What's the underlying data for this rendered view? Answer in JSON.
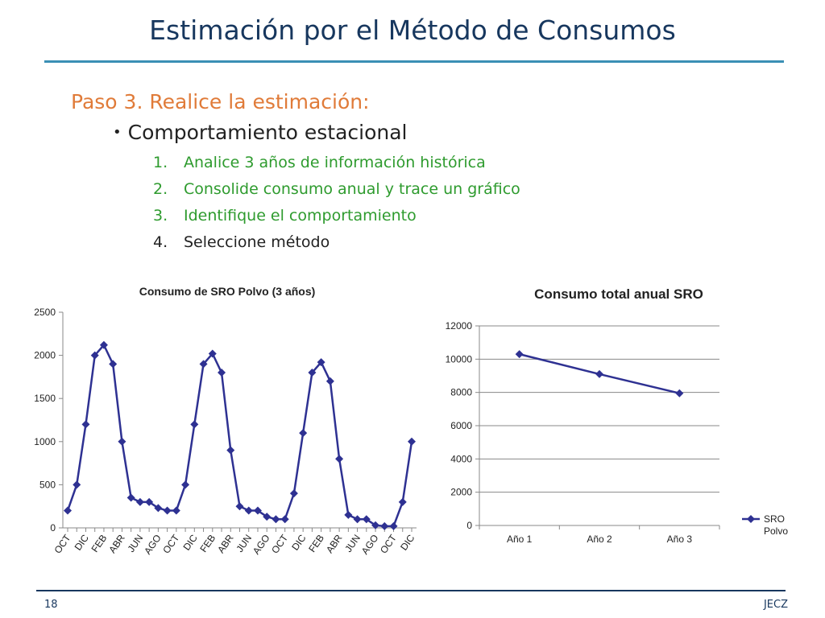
{
  "header": {
    "title": "Estimación por el Método de Consumos"
  },
  "content": {
    "step": "Paso 3. Realice la estimación:",
    "bullet": "Comportamiento estacional",
    "items": [
      {
        "num": "1.",
        "text": "Analice 3 años de información histórica"
      },
      {
        "num": "2.",
        "text": "Consolide consumo anual y trace un gráfico"
      },
      {
        "num": "3.",
        "text": "Identifique el comportamiento"
      },
      {
        "num": "4.",
        "text": "Seleccione método"
      }
    ]
  },
  "colors": {
    "title": "#17375e",
    "accent_rule": "#3b8fb5",
    "step": "#e07b39",
    "green": "#2e9b2e",
    "series": "#2e3192"
  },
  "chart_data": [
    {
      "type": "line",
      "title": "Consumo de SRO Polvo (3 años)",
      "xlabel": "",
      "ylabel": "",
      "ylim": [
        0,
        2500
      ],
      "yticks": [
        0,
        500,
        1000,
        1500,
        2000,
        2500
      ],
      "grid": false,
      "x_tick_labels": [
        "OCT",
        "DIC",
        "FEB",
        "ABR",
        "JUN",
        "AGO",
        "OCT",
        "DIC",
        "FEB",
        "ABR",
        "JUN",
        "AGO",
        "OCT",
        "DIC",
        "FEB",
        "ABR",
        "JUN",
        "AGO",
        "OCT",
        "DIC"
      ],
      "series": [
        {
          "values": [
            200,
            500,
            1200,
            2000,
            2120,
            1900,
            1000,
            350,
            300,
            300,
            230,
            200,
            200,
            500,
            1200,
            1900,
            2020,
            1800,
            900,
            250,
            200,
            200,
            130,
            100,
            100,
            400,
            1100,
            1800,
            1920,
            1700,
            800,
            150,
            100,
            100,
            30,
            20,
            20,
            300,
            1000
          ]
        }
      ]
    },
    {
      "type": "line",
      "title": "Consumo total anual SRO",
      "xlabel": "",
      "ylabel": "",
      "ylim": [
        0,
        12000
      ],
      "yticks": [
        0,
        2000,
        4000,
        6000,
        8000,
        10000,
        12000
      ],
      "grid": true,
      "legend": "right",
      "categories": [
        "Año 1",
        "Año 2",
        "Año 3"
      ],
      "series": [
        {
          "name": "SRO Polvo",
          "values": [
            10300,
            9100,
            7950
          ]
        }
      ]
    }
  ],
  "footer": {
    "page": "18",
    "author": "JECZ"
  }
}
